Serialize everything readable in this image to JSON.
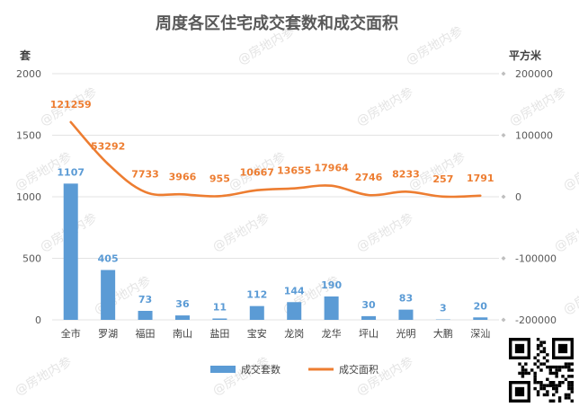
{
  "watermark": "@房地内参",
  "colors": {
    "bar": "#5b9bd5",
    "line": "#ed7d31",
    "grid": "#e3e3e3",
    "title": "#595959"
  },
  "chart_data": {
    "type": "bar",
    "title": "周度各区住宅成交套数和成交面积",
    "ylabel": "套",
    "y2label": "平方米",
    "ylim": [
      0,
      2000
    ],
    "y2lim": [
      -200000,
      200000
    ],
    "yticks": [
      "0",
      "500",
      "1000",
      "1500",
      "2000"
    ],
    "y2ticks": [
      "-200000",
      "-100000",
      "0",
      "100000",
      "200000"
    ],
    "grid": true,
    "legend_position": "bottom",
    "categories": [
      "全市",
      "罗湖",
      "福田",
      "南山",
      "盐田",
      "宝安",
      "龙岗",
      "龙华",
      "坪山",
      "光明",
      "大鹏",
      "深汕"
    ],
    "series": [
      {
        "name": "成交套数",
        "type": "bar",
        "axis": "left",
        "values": [
          1107,
          405,
          73,
          36,
          11,
          112,
          144,
          190,
          30,
          83,
          3,
          20
        ],
        "labels": [
          "1107",
          "405",
          "73",
          "36",
          "11",
          "112",
          "144",
          "190",
          "30",
          "83",
          "3",
          "20"
        ]
      },
      {
        "name": "成交面积",
        "type": "line",
        "axis": "right",
        "values": [
          121259,
          53292,
          7733,
          3966,
          955,
          10667,
          13655,
          17964,
          2746,
          8233,
          257,
          1791
        ],
        "labels": [
          "121259",
          "53292",
          "7733",
          "3966",
          "955",
          "10667",
          "13655",
          "17964",
          "2746",
          "8233",
          "257",
          "1791"
        ]
      }
    ]
  }
}
